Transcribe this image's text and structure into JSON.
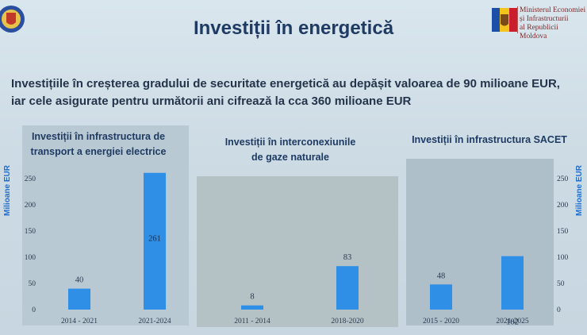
{
  "header": {
    "title": "Investiții în energetică",
    "subtitle": "Investițiile în creșterea gradului de securitate energetică au depășit valoarea de 90 milioane EUR, iar cele asigurate pentru următorii ani cifrează la cca 360 milioane EUR",
    "ministry_lines": [
      "Ministerul Economiei",
      "și Infrastructurii",
      "al Republicii Moldova"
    ]
  },
  "colors": {
    "bar": "#2f8fe6",
    "title": "#1f3b63",
    "axis_label": "#1f6fd0"
  },
  "chart_data": [
    {
      "type": "bar",
      "title": "Investiții în infrastructura de transport a energiei electrice",
      "title_lines": [
        "Investiții în infrastructura de",
        "transport a energiei electrice"
      ],
      "ylabel": "Milioane EUR",
      "categories": [
        "2014 - 2021",
        "2021-2024"
      ],
      "values": [
        40,
        261
      ],
      "ylim": [
        0,
        260
      ],
      "yticks": [
        0,
        50,
        100,
        150,
        200,
        250
      ]
    },
    {
      "type": "bar",
      "title": "Investiții în interconexiunile de gaze naturale",
      "title_lines": [
        "Investiții în interconexiunile",
        "de gaze naturale"
      ],
      "categories": [
        "2011 - 2014",
        "2018-2020"
      ],
      "values": [
        8,
        83
      ],
      "ylim": [
        0,
        260
      ]
    },
    {
      "type": "bar",
      "title": "Investiții în infrastructura SACET",
      "title_lines": [
        "Investiții în infrastructura SACET"
      ],
      "ylabel": "Milioane EUR",
      "categories": [
        "2015 - 2020",
        "2021-2025"
      ],
      "values": [
        48,
        102
      ],
      "ylim": [
        0,
        260
      ],
      "yticks": [
        0,
        50,
        100,
        150,
        200,
        250
      ]
    }
  ]
}
